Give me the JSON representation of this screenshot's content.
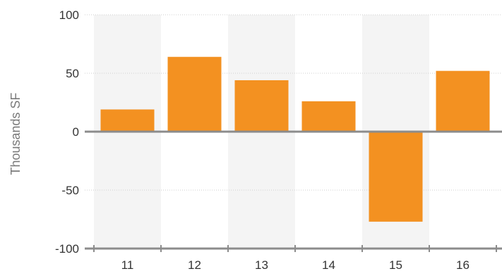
{
  "chart_data": {
    "type": "bar",
    "categories": [
      "11",
      "12",
      "13",
      "14",
      "15",
      "16"
    ],
    "values": [
      19,
      64,
      44,
      26,
      -77,
      52
    ],
    "title": "",
    "xlabel": "",
    "ylabel": "Thousands SF",
    "ylim": [
      -100,
      100
    ],
    "yticks": [
      "100",
      "50",
      "0",
      "-50",
      "-100"
    ],
    "grid": true,
    "colors": {
      "bar": "#f39121",
      "band": "#f4f4f4",
      "zero_line": "#8c8c8c",
      "gridline": "#cfcfcf"
    }
  }
}
